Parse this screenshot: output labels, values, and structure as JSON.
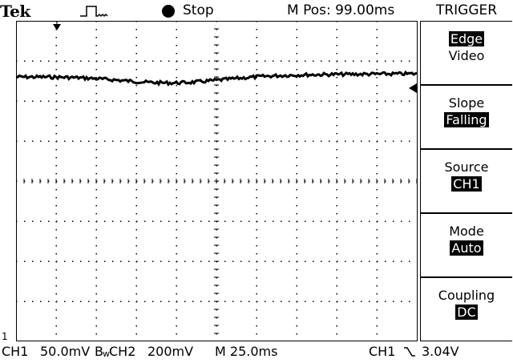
{
  "header": {
    "brand": "Tek",
    "acq_icon": "pulse-waveform-icon",
    "run_state": "Stop",
    "m_pos": "M Pos: 99.00ms",
    "menu_title": "TRIGGER"
  },
  "menu": {
    "type": {
      "option1": "Edge",
      "option2": "Video",
      "selected": "Edge"
    },
    "slope": {
      "label": "Slope",
      "value": "Falling"
    },
    "source": {
      "label": "Source",
      "value": "CH1"
    },
    "mode": {
      "label": "Mode",
      "value": "Auto"
    },
    "coupling": {
      "label": "Coupling",
      "value": "DC"
    }
  },
  "status": {
    "ch1_label": "CH1",
    "ch1_scale": "50.0mV",
    "bw_mark": "B",
    "bw_sub": "w",
    "ch2_label": "CH2",
    "ch2_scale": "200mV",
    "timebase": "M 25.0ms",
    "trig_source": "CH1",
    "trig_slope_icon": "falling-edge-icon",
    "trig_level": "3.04V"
  },
  "markers": {
    "ch1_ground": "1"
  },
  "colors": {
    "foreground": "#000000",
    "background": "#ffffff"
  }
}
